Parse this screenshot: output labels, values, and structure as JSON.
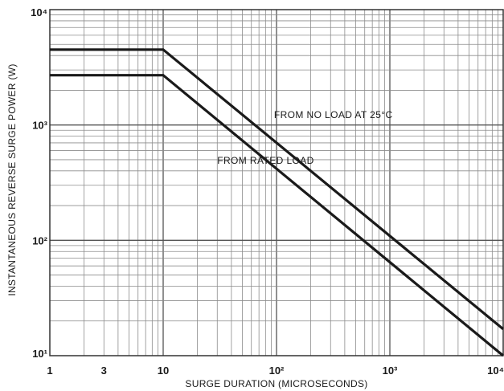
{
  "chart_data": {
    "type": "line",
    "title": "",
    "xlabel": "SURGE DURATION (MICROSECONDS)",
    "ylabel": "INSTANTANEOUS REVERSE SURGE POWER (W)",
    "x_scale": "log",
    "y_scale": "log",
    "xlim": [
      1,
      10000
    ],
    "ylim": [
      10,
      10000
    ],
    "grid": true,
    "x_tick_labels": [
      {
        "value": 1,
        "label": "1"
      },
      {
        "value": 3,
        "label": "3"
      },
      {
        "value": 10,
        "label": "10"
      },
      {
        "value": 100,
        "label": "10²"
      },
      {
        "value": 1000,
        "label": "10³"
      },
      {
        "value": 10000,
        "label": "10⁴"
      }
    ],
    "y_tick_labels": [
      {
        "value": 10000,
        "label": "10⁴"
      },
      {
        "value": 1000,
        "label": "10³"
      },
      {
        "value": 100,
        "label": "10²"
      },
      {
        "value": 10,
        "label": "10¹"
      }
    ],
    "series": [
      {
        "name": "FROM NO LOAD AT 25°C",
        "x": [
          1,
          10,
          10000
        ],
        "y": [
          4500,
          4500,
          17
        ]
      },
      {
        "name": "FROM RATED LOAD",
        "x": [
          1,
          10,
          10000
        ],
        "y": [
          2700,
          2700,
          10
        ]
      }
    ],
    "annotations": [
      {
        "text": "FROM NO LOAD AT 25°C",
        "x": 95,
        "y": 1150
      },
      {
        "text": "FROM RATED LOAD",
        "x": 30,
        "y": 460
      }
    ]
  }
}
